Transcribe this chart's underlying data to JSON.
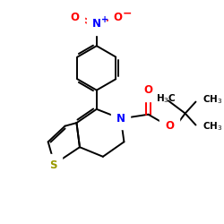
{
  "bg_color": "#ffffff",
  "colors": {
    "N": "#0000ff",
    "O": "#ff0000",
    "S": "#999900",
    "C": "#000000"
  },
  "figsize": [
    2.5,
    2.5
  ],
  "dpi": 100
}
